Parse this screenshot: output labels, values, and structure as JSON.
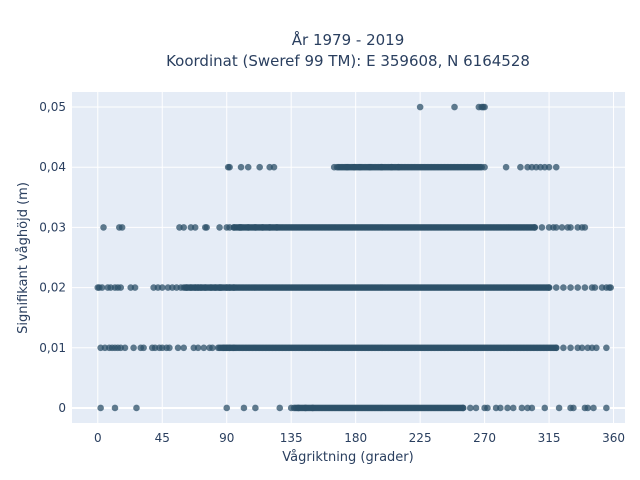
{
  "chart_data": {
    "type": "scatter",
    "title_line1": "År 1979 - 2019",
    "title_line2": "Koordinat (Sweref 99 TM): E 359608, N 6164528",
    "xlabel": "Vågriktning (grader)",
    "ylabel": "Signifikant våghöjd (m)",
    "xlim": [
      -18,
      368
    ],
    "ylim": [
      -0.0025,
      0.0525
    ],
    "x_ticks": [
      0,
      45,
      90,
      135,
      180,
      225,
      270,
      315,
      360
    ],
    "x_tick_labels": [
      "0",
      "45",
      "90",
      "135",
      "180",
      "225",
      "270",
      "315",
      "360"
    ],
    "y_ticks": [
      0,
      0.01,
      0.02,
      0.03,
      0.04,
      0.05
    ],
    "y_tick_labels": [
      "0",
      "0,01",
      "0,02",
      "0,03",
      "0,04",
      "0,05"
    ],
    "grid": true,
    "background_color": "#e5ecf6",
    "marker_color": "#2c5068",
    "marker_opacity": 0.75,
    "series": [
      {
        "y": 0.05,
        "points": [
          225,
          249,
          266,
          268,
          269,
          270
        ],
        "dense_ranges": []
      },
      {
        "y": 0.04,
        "points": [
          91,
          92,
          100,
          105,
          113,
          120,
          123,
          165,
          167,
          174,
          179,
          183,
          190,
          198,
          205,
          210,
          270,
          285,
          295,
          300,
          303,
          306,
          309,
          312,
          315,
          320
        ],
        "dense_ranges": [
          [
            168,
            268
          ]
        ]
      },
      {
        "y": 0.03,
        "points": [
          4,
          15,
          17,
          57,
          60,
          65,
          68,
          75,
          76,
          85,
          90,
          92,
          95,
          99,
          100,
          105,
          110,
          115,
          120,
          125,
          305,
          310,
          315,
          318,
          320,
          324,
          328,
          330,
          335,
          338,
          340
        ],
        "dense_ranges": [
          [
            95,
            305
          ]
        ]
      },
      {
        "y": 0.02,
        "points": [
          0,
          1,
          3,
          7,
          9,
          12,
          14,
          16,
          23,
          26,
          39,
          42,
          45,
          49,
          52,
          55,
          58,
          62,
          65,
          68,
          70,
          72,
          75,
          79,
          82,
          85,
          86,
          90,
          92,
          95,
          315,
          320,
          325,
          330,
          335,
          340,
          345,
          347,
          352,
          355,
          357,
          358
        ],
        "dense_ranges": [
          [
            60,
            315
          ]
        ]
      },
      {
        "y": 0.01,
        "points": [
          2,
          5,
          8,
          10,
          12,
          14,
          16,
          19,
          25,
          30,
          32,
          38,
          40,
          43,
          45,
          48,
          50,
          56,
          60,
          67,
          70,
          74,
          78,
          80,
          84,
          88,
          90,
          92,
          95,
          320,
          325,
          330,
          335,
          338,
          342,
          345,
          348,
          355
        ],
        "dense_ranges": [
          [
            85,
            320
          ]
        ]
      },
      {
        "y": 0,
        "points": [
          2,
          12,
          27,
          90,
          102,
          110,
          127,
          135,
          140,
          145,
          150,
          255,
          260,
          264,
          270,
          272,
          278,
          281,
          286,
          290,
          296,
          300,
          303,
          312,
          322,
          330,
          332,
          340,
          342,
          346,
          355
        ],
        "dense_ranges": [
          [
            137,
            255
          ]
        ]
      }
    ]
  }
}
